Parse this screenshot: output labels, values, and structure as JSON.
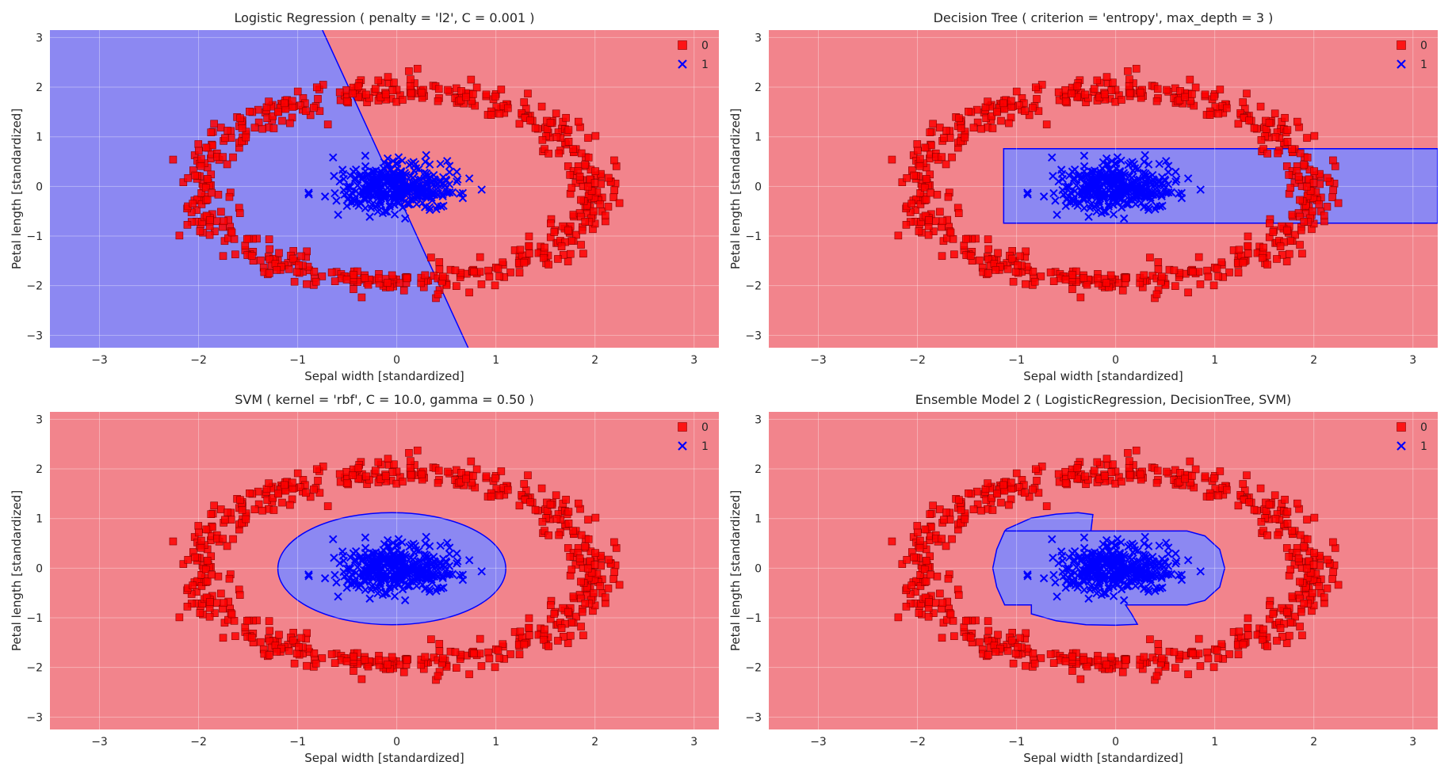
{
  "colors": {
    "class0_region": "#f2848c",
    "class1_region": "#8c88f2",
    "class0_marker": "#ff0000",
    "class1_marker": "#0000ff",
    "grid": "#ffffff"
  },
  "chart_data": [
    {
      "type": "scatter",
      "title": "Logistic Regression ( penalty = 'l2', C = 0.001 )",
      "xlabel": "Sepal width [standardized]",
      "ylabel": "Petal length [standardized]",
      "xlim": [
        -3.5,
        3.25
      ],
      "ylim": [
        -3.25,
        3.15
      ],
      "xticks": [
        -3,
        -2,
        -1,
        0,
        1,
        2,
        3
      ],
      "yticks": [
        -3,
        -2,
        -1,
        0,
        1,
        2,
        3
      ],
      "legend": {
        "placement": "top-right",
        "entries": [
          "0",
          "1"
        ]
      },
      "grid": true,
      "dataset": {
        "class0": "ring of radius ~2.0 (x) by ~1.95 (y), noise ~0.12, 600 points",
        "class1": "blob centered at (0, 0), spread ~0.3 x ~0.22, 400 points"
      },
      "decision_region": {
        "kind": "linear",
        "boundary_line": [
          [
            -0.75,
            3.15
          ],
          [
            0.72,
            -3.25
          ]
        ],
        "left_class": "1",
        "right_class": "0"
      }
    },
    {
      "type": "scatter",
      "title": "Decision Tree ( criterion = 'entropy', max_depth = 3 )",
      "xlabel": "Sepal width [standardized]",
      "ylabel": "Petal length [standardized]",
      "xlim": [
        -3.5,
        3.25
      ],
      "ylim": [
        -3.25,
        3.15
      ],
      "xticks": [
        -3,
        -2,
        -1,
        0,
        1,
        2,
        3
      ],
      "yticks": [
        -3,
        -2,
        -1,
        0,
        1,
        2,
        3
      ],
      "legend": {
        "placement": "top-right",
        "entries": [
          "0",
          "1"
        ]
      },
      "grid": true,
      "decision_region": {
        "kind": "rectangle",
        "class": "1",
        "x_range": [
          -1.13,
          3.25
        ],
        "y_range": [
          -0.74,
          0.76
        ]
      }
    },
    {
      "type": "scatter",
      "title": "SVM ( kernel = 'rbf', C = 10.0, gamma = 0.50 )",
      "xlabel": "Sepal width [standardized]",
      "ylabel": "Petal length [standardized]",
      "xlim": [
        -3.5,
        3.25
      ],
      "ylim": [
        -3.25,
        3.15
      ],
      "xticks": [
        -3,
        -2,
        -1,
        0,
        1,
        2,
        3
      ],
      "yticks": [
        -3,
        -2,
        -1,
        0,
        1,
        2,
        3
      ],
      "legend": {
        "placement": "top-right",
        "entries": [
          "0",
          "1"
        ]
      },
      "grid": true,
      "decision_region": {
        "kind": "ellipse",
        "class": "1",
        "center": [
          -0.05,
          -0.01
        ],
        "rx": 1.15,
        "ry": 1.13
      }
    },
    {
      "type": "scatter",
      "title": "Ensemble Model 2 ( LogisticRegression, DecisionTree, SVM)",
      "xlabel": "Sepal width [standardized]",
      "ylabel": "Petal length [standardized]",
      "xlim": [
        -3.5,
        3.25
      ],
      "ylim": [
        -3.25,
        3.15
      ],
      "xticks": [
        -3,
        -2,
        -1,
        0,
        1,
        2,
        3
      ],
      "yticks": [
        -3,
        -2,
        -1,
        0,
        1,
        2,
        3
      ],
      "legend": {
        "placement": "top-right",
        "entries": [
          "0",
          "1"
        ]
      },
      "grid": true,
      "decision_region": {
        "kind": "polygon",
        "class": "1",
        "points": [
          [
            -1.12,
            0.75
          ],
          [
            -0.25,
            0.75
          ],
          [
            -0.23,
            1.08
          ],
          [
            -0.38,
            1.12
          ],
          [
            -0.6,
            1.09
          ],
          [
            -0.85,
            1.01
          ],
          [
            -1.1,
            0.79
          ],
          [
            -1.12,
            0.75
          ],
          [
            -1.12,
            0.75
          ],
          [
            -1.2,
            0.38
          ],
          [
            -1.24,
            0.0
          ],
          [
            -1.2,
            -0.38
          ],
          [
            -1.12,
            -0.74
          ],
          [
            -0.85,
            -0.74
          ],
          [
            -0.85,
            -0.92
          ],
          [
            -0.6,
            -1.06
          ],
          [
            -0.3,
            -1.14
          ],
          [
            0.0,
            -1.15
          ],
          [
            0.22,
            -1.13
          ],
          [
            0.16,
            -0.92
          ],
          [
            0.1,
            -0.74
          ],
          [
            0.72,
            -0.74
          ],
          [
            0.9,
            -0.65
          ],
          [
            1.05,
            -0.38
          ],
          [
            1.1,
            0.0
          ],
          [
            1.05,
            0.38
          ],
          [
            0.9,
            0.65
          ],
          [
            0.72,
            0.75
          ],
          [
            -0.25,
            0.75
          ],
          [
            -1.12,
            0.75
          ]
        ]
      }
    }
  ]
}
